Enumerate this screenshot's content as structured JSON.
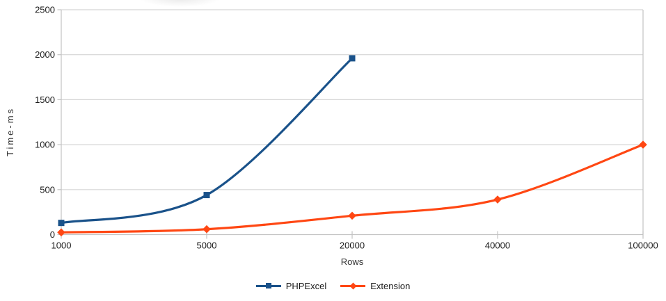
{
  "chart_data": {
    "type": "line",
    "title": "",
    "xlabel": "Rows",
    "ylabel": "Time-ms",
    "categories": [
      "1000",
      "5000",
      "20000",
      "40000",
      "100000"
    ],
    "series": [
      {
        "name": "PHPExcel",
        "color": "#1A528A",
        "marker": "square",
        "values": [
          130,
          440,
          1960,
          null,
          null
        ]
      },
      {
        "name": "Extension",
        "color": "#FF4713",
        "marker": "diamond",
        "values": [
          25,
          60,
          210,
          390,
          1000
        ]
      }
    ],
    "ylim": [
      0,
      2500
    ],
    "yticks": [
      0,
      500,
      1000,
      1500,
      2000,
      2500
    ],
    "grid": "horizontal",
    "smooth_lines": true,
    "legend_position": "bottom",
    "colors": {
      "background": "#FFFFFF",
      "gridline": "#D5D5D5",
      "axis": "#C3C3C3",
      "tick_label": "#1A1A1A",
      "axis_title": "#333333"
    }
  }
}
